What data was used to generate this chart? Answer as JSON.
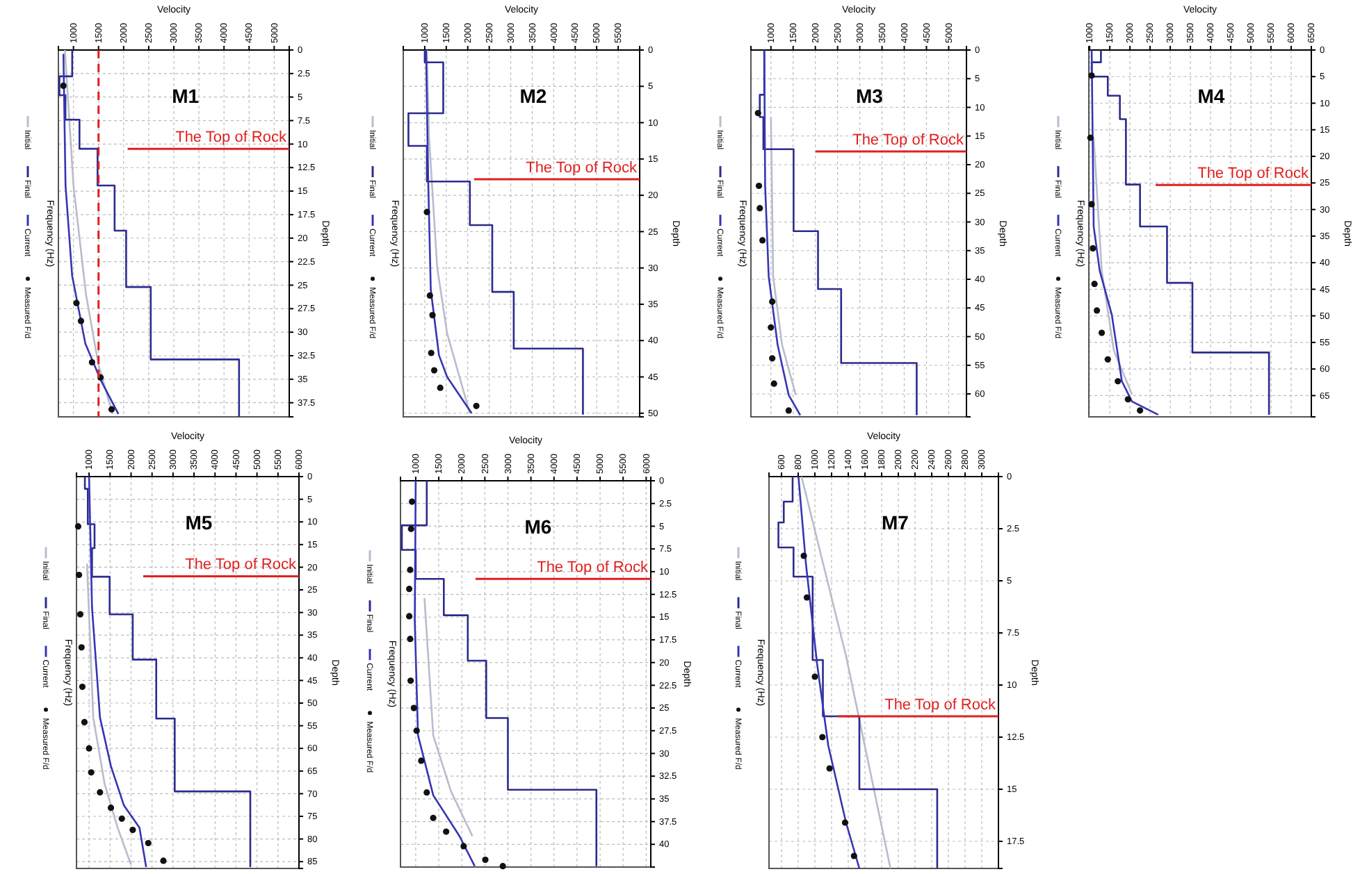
{
  "chart_data": [
    {
      "type": "line",
      "title": "M1",
      "xlabel": "Velocity",
      "ylabel": "Depth",
      "y2label": "Frequency (Hz)",
      "xlim": [
        700,
        5300
      ],
      "xticks": [
        1000,
        1500,
        2000,
        2500,
        3000,
        3500,
        4000,
        4500,
        5000
      ],
      "ylim": [
        39,
        0
      ],
      "yticks": [
        0,
        2.5,
        5,
        7.5,
        10,
        12.5,
        15,
        17.5,
        20,
        22.5,
        25,
        27.5,
        30,
        32.5,
        35,
        37.5
      ],
      "grid": true,
      "legend": "left",
      "series": [
        {
          "name": "Initial",
          "color": "#b8bccc",
          "x": [
            830,
            1000,
            1250,
            1500,
            1780
          ],
          "values": [
            0,
            14.4,
            26,
            33.5,
            38.7
          ]
        },
        {
          "name": "Final",
          "color": "#2b2b8f",
          "x": [
            975,
            975,
            720,
            720,
            840,
            840,
            1120,
            1120,
            1480,
            1480,
            1820,
            1820,
            2050,
            2050,
            2540,
            2540,
            4300,
            4300
          ],
          "values": [
            0,
            2.8,
            2.8,
            4.8,
            4.8,
            7.4,
            7.4,
            10.5,
            10.5,
            14.4,
            14.4,
            19.2,
            19.2,
            25.2,
            25.2,
            32.9,
            32.9,
            39
          ]
        },
        {
          "name": "Current",
          "color": "#3535b5",
          "x": [
            800,
            842,
            974,
            1237,
            1544,
            1895
          ],
          "values": [
            0.4,
            14.4,
            24,
            31.2,
            35.1,
            38.7
          ]
        },
        {
          "name": "Measured F/d",
          "type": "scatter",
          "color": "#111111",
          "x": [
            800,
            1060,
            1150,
            1370,
            1540,
            1760
          ],
          "values": [
            3.8,
            26.9,
            28.8,
            33.2,
            34.8,
            38.2
          ]
        }
      ],
      "ref_lines": [
        {
          "axis": "y",
          "value": 10.5,
          "label": "The Top of Rock",
          "color": "#e02020"
        },
        {
          "axis": "x",
          "value": 1500,
          "color": "#e02020",
          "line_style": "dashed"
        }
      ]
    },
    {
      "type": "line",
      "title": "M2",
      "xlabel": "Velocity",
      "ylabel": "Depth",
      "y2label": "Frequency (Hz)",
      "xlim": [
        500,
        6000
      ],
      "xticks": [
        1000,
        1500,
        2000,
        2500,
        3000,
        3500,
        4000,
        4500,
        5000,
        5500
      ],
      "ylim": [
        50.5,
        0
      ],
      "yticks": [
        0,
        5,
        10,
        15,
        20,
        25,
        30,
        35,
        40,
        45,
        50
      ],
      "grid": true,
      "legend": "left",
      "series": [
        {
          "name": "Initial",
          "color": "#b8bccc",
          "x": [
            1050,
            1100,
            1290,
            1520,
            1760,
            2050
          ],
          "values": [
            0,
            12,
            30,
            39,
            44,
            50
          ]
        },
        {
          "name": "Final",
          "color": "#2b2b8f",
          "x": [
            1000,
            1000,
            1430,
            1430,
            620,
            620,
            1050,
            1050,
            2050,
            2050,
            2570,
            2570,
            3070,
            3070,
            4680,
            4680
          ],
          "values": [
            0,
            1.7,
            1.7,
            8.7,
            8.7,
            13.2,
            13.2,
            18.1,
            18.1,
            24.1,
            24.1,
            33.3,
            33.3,
            41.1,
            41.1,
            50.2
          ]
        },
        {
          "name": "Current",
          "color": "#3535b5",
          "x": [
            1030,
            1080,
            1140,
            1330,
            1520,
            2090
          ],
          "values": [
            0,
            18,
            33,
            42,
            45,
            50
          ]
        },
        {
          "name": "Measured F/d",
          "type": "scatter",
          "color": "#111111",
          "x": [
            1050,
            1120,
            1180,
            1150,
            1220,
            1360,
            2200
          ],
          "values": [
            22.3,
            33.8,
            36.5,
            41.7,
            44.1,
            46.5,
            49
          ]
        }
      ],
      "ref_lines": [
        {
          "axis": "y",
          "value": 17.8,
          "label": "The Top of Rock",
          "color": "#e02020"
        }
      ]
    },
    {
      "type": "line",
      "title": "M3",
      "xlabel": "Velocity",
      "ylabel": "Depth",
      "y2label": "Frequency (Hz)",
      "xlim": [
        550,
        5400
      ],
      "xticks": [
        1000,
        1500,
        2000,
        2500,
        3000,
        3500,
        4000,
        4500,
        5000
      ],
      "ylim": [
        64,
        0
      ],
      "yticks": [
        0,
        5,
        10,
        15,
        20,
        25,
        30,
        35,
        40,
        45,
        50,
        55,
        60
      ],
      "grid": true,
      "legend": "left",
      "series": [
        {
          "name": "Initial",
          "color": "#b8bccc",
          "x": [
            1000,
            1050,
            1250,
            1560
          ],
          "values": [
            11.7,
            39.5,
            51.4,
            60.2
          ]
        },
        {
          "name": "Final",
          "color": "#2b2b8f",
          "x": [
            850,
            850,
            750,
            750,
            830,
            830,
            1510,
            1510,
            2060,
            2060,
            2580,
            2580,
            4280,
            4280
          ],
          "values": [
            0,
            7.8,
            7.8,
            11.7,
            11.7,
            17.3,
            17.3,
            31.6,
            31.6,
            41.7,
            41.7,
            54.6,
            54.6,
            63.7
          ]
        },
        {
          "name": "Current",
          "color": "#3535b5",
          "x": [
            850,
            870,
            950,
            1150,
            1400,
            1660
          ],
          "values": [
            0,
            23.7,
            39.5,
            51.4,
            60.2,
            63.7
          ]
        },
        {
          "name": "Measured F/d",
          "type": "scatter",
          "color": "#111111",
          "x": [
            710,
            730,
            750,
            810,
            1030,
            1000,
            1030,
            1070,
            1400
          ],
          "values": [
            11,
            23.7,
            27.6,
            33.2,
            43.9,
            48.4,
            53.8,
            58.2,
            62.9
          ]
        }
      ],
      "ref_lines": [
        {
          "axis": "y",
          "value": 17.7,
          "label": "The Top of Rock",
          "color": "#e02020"
        }
      ]
    },
    {
      "type": "line",
      "title": "M4",
      "xlabel": "Velocity",
      "ylabel": "Depth",
      "y2label": "Frequency (Hz)",
      "xlim": [
        980,
        6500
      ],
      "xticks": [
        1000,
        1500,
        2000,
        2500,
        3000,
        3500,
        4000,
        4500,
        5000,
        5500,
        6000,
        6500
      ],
      "ylim": [
        69,
        0
      ],
      "yticks": [
        0,
        5,
        10,
        15,
        20,
        25,
        30,
        35,
        40,
        45,
        50,
        55,
        60,
        65
      ],
      "grid": true,
      "legend": "left",
      "series": [
        {
          "name": "Initial",
          "color": "#b8bccc",
          "x": [
            1100,
            1300,
            1600,
            2050
          ],
          "values": [
            16.5,
            41.5,
            56.5,
            64.8
          ]
        },
        {
          "name": "Final",
          "color": "#2b2b8f",
          "x": [
            1280,
            1280,
            1050,
            1050,
            1450,
            1450,
            1750,
            1750,
            1900,
            1900,
            2250,
            2250,
            2920,
            2920,
            3550,
            3550,
            5450,
            5450
          ],
          "values": [
            0,
            2.3,
            2.3,
            5,
            5,
            8.6,
            8.6,
            13,
            13,
            25.3,
            25.3,
            33.2,
            33.2,
            43.8,
            43.8,
            56.9,
            56.9,
            68.6
          ]
        },
        {
          "name": "Current",
          "color": "#3535b5",
          "x": [
            1050,
            1100,
            1250,
            1550,
            1800,
            2050,
            2700
          ],
          "values": [
            0,
            33.2,
            41.5,
            49.8,
            62.3,
            66.1,
            68.6
          ]
        },
        {
          "name": "Measured F/d",
          "type": "scatter",
          "color": "#111111",
          "x": [
            1050,
            1020,
            1050,
            1080,
            1120,
            1180,
            1300,
            1450,
            1700,
            1950,
            2250
          ],
          "values": [
            4.8,
            16.5,
            29,
            37.3,
            44,
            49,
            53.2,
            58.2,
            62.3,
            65.7,
            67.8
          ]
        }
      ],
      "ref_lines": [
        {
          "axis": "y",
          "value": 25.4,
          "label": "The Top of Rock",
          "color": "#e02020"
        }
      ]
    },
    {
      "type": "line",
      "title": "M5",
      "xlabel": "Velocity",
      "ylabel": "Depth",
      "y2label": "Frequency (Hz)",
      "xlim": [
        700,
        6000
      ],
      "xticks": [
        1000,
        1500,
        2000,
        2500,
        3000,
        3500,
        4000,
        4500,
        5000,
        5500,
        6000
      ],
      "ylim": [
        86.5,
        0
      ],
      "yticks": [
        0,
        5,
        10,
        15,
        20,
        25,
        30,
        35,
        40,
        45,
        50,
        55,
        60,
        65,
        70,
        75,
        80,
        85
      ],
      "grid": true,
      "legend": "left",
      "series": [
        {
          "name": "Initial",
          "color": "#b8bccc",
          "x": [
            950,
            1100,
            1370,
            1680,
            2000
          ],
          "values": [
            19.2,
            53.2,
            67.8,
            77.5,
            85.7
          ]
        },
        {
          "name": "Final",
          "color": "#2b2b8f",
          "x": [
            900,
            900,
            970,
            970,
            1130,
            1130,
            1070,
            1070,
            1490,
            1490,
            2040,
            2040,
            2600,
            2600,
            3040,
            3040,
            4840,
            4840
          ],
          "values": [
            0,
            2.7,
            2.7,
            10.5,
            10.5,
            15.8,
            15.8,
            22.1,
            22.1,
            30.4,
            30.4,
            40.4,
            40.4,
            53.4,
            53.4,
            69.5,
            69.5,
            86.2
          ]
        },
        {
          "name": "Current",
          "color": "#3535b5",
          "x": [
            1000,
            1070,
            1260,
            1520,
            1830,
            2200,
            2360
          ],
          "values": [
            0,
            28.9,
            53.2,
            63.9,
            72.6,
            77.5,
            86.2
          ]
        },
        {
          "name": "Measured F/d",
          "type": "scatter",
          "color": "#111111",
          "x": [
            740,
            760,
            790,
            820,
            840,
            890,
            1000,
            1050,
            1260,
            1520,
            1780,
            2040,
            2410,
            2770
          ],
          "values": [
            11,
            21.7,
            30.4,
            37.7,
            46.4,
            54.2,
            60,
            65.3,
            69.7,
            73.1,
            75.5,
            78,
            80.9,
            84.8
          ]
        }
      ],
      "ref_lines": [
        {
          "axis": "y",
          "value": 22,
          "label": "The Top of Rock",
          "color": "#e02020"
        }
      ]
    },
    {
      "type": "line",
      "title": "M6",
      "xlabel": "Velocity",
      "ylabel": "Depth",
      "y2label": "Frequency (Hz)",
      "xlim": [
        670,
        6100
      ],
      "xticks": [
        1000,
        1500,
        2000,
        2500,
        3000,
        3500,
        4000,
        4500,
        5000,
        5500,
        6000
      ],
      "ylim": [
        42.5,
        0
      ],
      "yticks": [
        0,
        2.5,
        5,
        7.5,
        10,
        12.5,
        15,
        17.5,
        20,
        22.5,
        25,
        27.5,
        30,
        32.5,
        35,
        37.5,
        40
      ],
      "grid": true,
      "legend": "left",
      "series": [
        {
          "name": "Initial",
          "color": "#b8bccc",
          "x": [
            1190,
            1380,
            1760,
            2230
          ],
          "values": [
            12.9,
            28,
            34.1,
            39.1
          ]
        },
        {
          "name": "Final",
          "color": "#2b2b8f",
          "x": [
            1240,
            1240,
            700,
            700,
            1000,
            1000,
            1610,
            1610,
            2130,
            2130,
            2530,
            2530,
            3000,
            3000,
            4920,
            4920
          ],
          "values": [
            0,
            4.9,
            4.9,
            7.6,
            7.6,
            10.8,
            10.8,
            14.8,
            14.8,
            19.8,
            19.8,
            26.1,
            26.1,
            34,
            34,
            42.4
          ]
        },
        {
          "name": "Current",
          "color": "#3535b5",
          "x": [
            1000,
            980,
            1050,
            1380,
            1950,
            2280
          ],
          "values": [
            0,
            15.4,
            28,
            34.6,
            39.1,
            42.4
          ]
        },
        {
          "name": "Measured F/d",
          "type": "scatter",
          "color": "#111111",
          "x": [
            920,
            900,
            880,
            860,
            860,
            880,
            890,
            960,
            1020,
            1120,
            1240,
            1380,
            1660,
            2040,
            2510,
            2890
          ],
          "values": [
            2.3,
            5.3,
            9.8,
            11.9,
            14.9,
            17.4,
            22,
            25,
            27.5,
            30.8,
            34.3,
            37.1,
            38.6,
            40.2,
            41.7,
            42.4
          ]
        }
      ],
      "ref_lines": [
        {
          "axis": "y",
          "value": 10.8,
          "label": "The Top of Rock",
          "color": "#e02020"
        }
      ]
    },
    {
      "type": "line",
      "title": "M7",
      "xlabel": "Velocity",
      "ylabel": "Depth",
      "y2label": "Frequency (Hz)",
      "xlim": [
        450,
        3200
      ],
      "xticks": [
        600,
        800,
        1000,
        1200,
        1400,
        1600,
        1800,
        2000,
        2200,
        2400,
        2600,
        2800,
        3000
      ],
      "ylim": [
        18.8,
        0
      ],
      "yticks": [
        0,
        2.5,
        5,
        7.5,
        10,
        12.5,
        15,
        17.5
      ],
      "grid": true,
      "legend": "left",
      "series": [
        {
          "name": "Initial",
          "color": "#b8bccc",
          "x": [
            840,
            1373,
            1906
          ],
          "values": [
            0,
            8.6,
            18.8
          ]
        },
        {
          "name": "Final",
          "color": "#2b2b8f",
          "x": [
            733,
            733,
            627,
            627,
            563,
            563,
            744,
            744,
            973,
            973,
            1096,
            1096,
            1533,
            1533,
            2466,
            2466
          ],
          "values": [
            0,
            1.2,
            1.2,
            2.2,
            2.2,
            3.4,
            3.4,
            4.8,
            4.8,
            8.8,
            8.8,
            11.5,
            11.5,
            15,
            15,
            18.8
          ]
        },
        {
          "name": "Current",
          "color": "#3535b5",
          "x": [
            803,
            893,
            1027,
            1160,
            1373,
            1533
          ],
          "values": [
            0,
            4.2,
            9,
            12.9,
            16.6,
            18.8
          ]
        },
        {
          "name": "Measured F/d",
          "type": "scatter",
          "color": "#111111",
          "x": [
            867,
            904,
            1000,
            1090,
            1176,
            1362,
            1469
          ],
          "values": [
            3.8,
            5.8,
            9.6,
            12.5,
            14,
            16.6,
            18.2
          ]
        }
      ],
      "ref_lines": [
        {
          "axis": "y",
          "value": 11.5,
          "label": "The Top of Rock",
          "color": "#e02020"
        }
      ]
    }
  ]
}
